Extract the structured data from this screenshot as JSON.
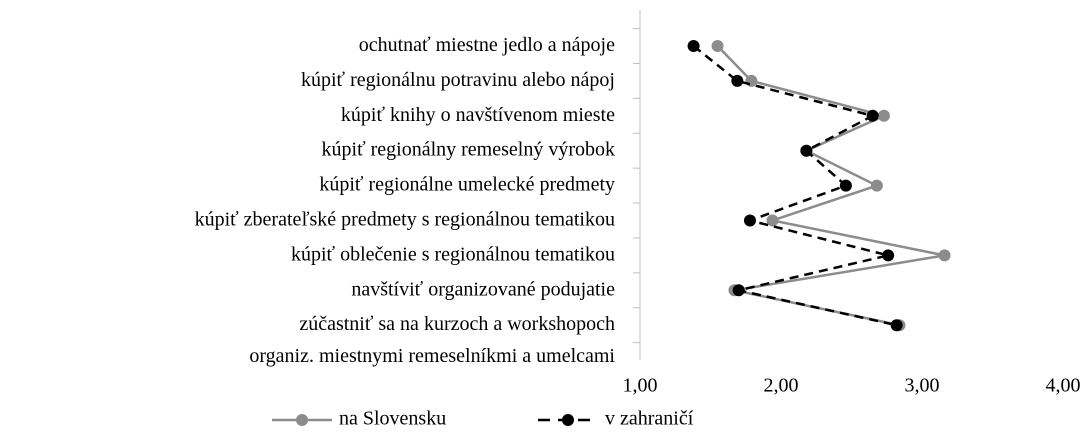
{
  "chart_data": {
    "type": "line",
    "categories": [
      "ochutnať miestne jedlo a nápoje",
      "kúpiť regionálnu potravinu alebo nápoj",
      "kúpiť knihy o navštívenom mieste",
      "kúpiť regionálny remeselný výrobok",
      "kúpiť regionálne umelecké predmety",
      "kúpiť zberateľské predmety s regionálnou tematikou",
      "kúpiť oblečenie s regionálnou tematikou",
      "navštíviť organizované podujatie",
      "zúčastniť sa na kurzoch a workshopoch\norganiz. miestnymi remeselníkmi a umelcami"
    ],
    "series": [
      {
        "name": "na Slovensku",
        "color": "#8c8c8c",
        "dash": "solid",
        "values": [
          1.55,
          1.79,
          2.73,
          2.18,
          2.68,
          1.94,
          3.16,
          1.67,
          2.84
        ]
      },
      {
        "name": "v zahraničí",
        "color": "#000000",
        "dash": "dashed",
        "values": [
          1.38,
          1.69,
          2.65,
          2.18,
          2.46,
          1.78,
          2.76,
          1.7,
          2.82
        ]
      }
    ],
    "xlim": [
      1,
      4
    ],
    "xticks": [
      {
        "value": 1,
        "label": "1,00"
      },
      {
        "value": 2,
        "label": "2,00"
      },
      {
        "value": 3,
        "label": "3,00"
      },
      {
        "value": 4,
        "label": "4,00"
      }
    ],
    "grid": false,
    "legend": "bottom"
  }
}
